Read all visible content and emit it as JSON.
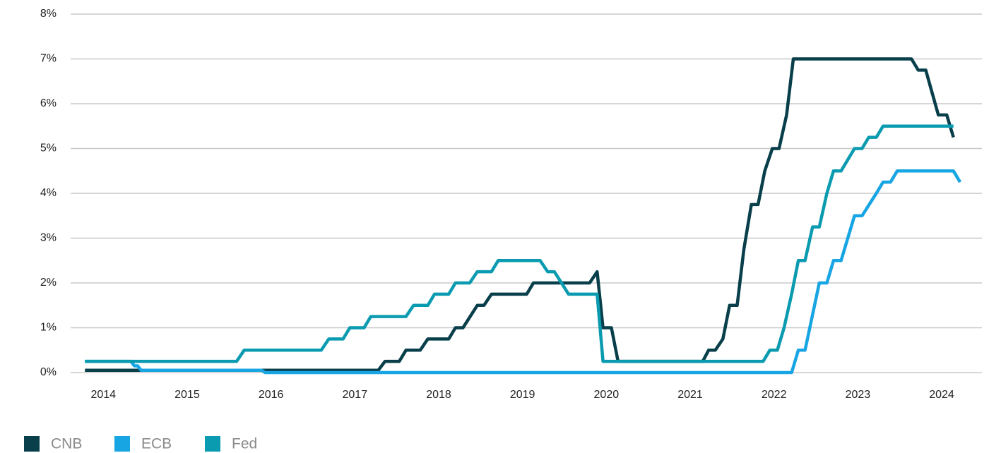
{
  "chart_data": {
    "type": "line",
    "xlim": [
      2013.61,
      2024.48
    ],
    "xticks": [
      2014,
      2015,
      2016,
      2017,
      2018,
      2019,
      2020,
      2021,
      2022,
      2023,
      2024
    ],
    "ylim": [
      0,
      8
    ],
    "yticks": [
      {
        "value": 0,
        "label": "0%"
      },
      {
        "value": 1,
        "label": "1%"
      },
      {
        "value": 2,
        "label": "2%"
      },
      {
        "value": 3,
        "label": "3%"
      },
      {
        "value": 4,
        "label": "4%"
      },
      {
        "value": 5,
        "label": "5%"
      },
      {
        "value": 6,
        "label": "6%"
      },
      {
        "value": 7,
        "label": "7%"
      },
      {
        "value": 8,
        "label": "8%"
      }
    ],
    "grid": true,
    "legend": "bottom-left",
    "series": [
      {
        "name": "CNB",
        "color": "#083f4a",
        "x": [
          2013.78,
          2017.28,
          2017.36,
          2017.53,
          2017.61,
          2017.78,
          2017.87,
          2018.12,
          2018.2,
          2018.29,
          2018.46,
          2018.54,
          2018.63,
          2019.05,
          2019.13,
          2019.8,
          2019.89,
          2019.96,
          2020.06,
          2020.14,
          2021.15,
          2021.22,
          2021.3,
          2021.39,
          2021.47,
          2021.56,
          2021.64,
          2021.73,
          2021.81,
          2021.89,
          2021.98,
          2022.06,
          2022.15,
          2022.23,
          2023.64,
          2023.72,
          2023.81,
          2023.96,
          2024.06,
          2024.14
        ],
        "values": [
          0.05,
          0.05,
          0.25,
          0.25,
          0.5,
          0.5,
          0.75,
          0.75,
          1.0,
          1.0,
          1.5,
          1.5,
          1.75,
          1.75,
          2.0,
          2.0,
          2.25,
          1.0,
          1.0,
          0.25,
          0.25,
          0.5,
          0.5,
          0.75,
          1.5,
          1.5,
          2.75,
          3.75,
          3.75,
          4.5,
          5.0,
          5.0,
          5.75,
          7.0,
          7.0,
          6.75,
          6.75,
          5.75,
          5.75,
          5.25
        ]
      },
      {
        "name": "ECB",
        "color": "#18a5e3",
        "x": [
          2013.78,
          2014.33,
          2014.37,
          2014.41,
          2014.45,
          2015.89,
          2015.93,
          2022.21,
          2022.29,
          2022.37,
          2022.54,
          2022.63,
          2022.71,
          2022.8,
          2022.96,
          2023.05,
          2023.22,
          2023.3,
          2023.39,
          2023.47,
          2024.14,
          2024.22
        ],
        "values": [
          0.25,
          0.25,
          0.15,
          0.15,
          0.05,
          0.05,
          0,
          0,
          0.5,
          0.5,
          2.0,
          2.0,
          2.5,
          2.5,
          3.5,
          3.5,
          4.0,
          4.25,
          4.25,
          4.5,
          4.5,
          4.25
        ]
      },
      {
        "name": "Fed",
        "color": "#0b9bb0",
        "x": [
          2013.78,
          2015.59,
          2015.68,
          2016.6,
          2016.69,
          2016.86,
          2016.94,
          2017.11,
          2017.19,
          2017.61,
          2017.7,
          2017.87,
          2017.95,
          2018.12,
          2018.2,
          2018.37,
          2018.46,
          2018.63,
          2018.71,
          2019.21,
          2019.3,
          2019.38,
          2019.55,
          2019.89,
          2019.96,
          2021.87,
          2021.95,
          2022.04,
          2022.12,
          2022.21,
          2022.29,
          2022.37,
          2022.46,
          2022.54,
          2022.63,
          2022.71,
          2022.8,
          2022.88,
          2022.96,
          2023.05,
          2023.13,
          2023.22,
          2023.3,
          2024.14
        ],
        "values": [
          0.25,
          0.25,
          0.5,
          0.5,
          0.75,
          0.75,
          1.0,
          1.0,
          1.25,
          1.25,
          1.5,
          1.5,
          1.75,
          1.75,
          2.0,
          2.0,
          2.25,
          2.25,
          2.5,
          2.5,
          2.25,
          2.25,
          1.75,
          1.75,
          0.25,
          0.25,
          0.5,
          0.5,
          1.0,
          1.75,
          2.5,
          2.5,
          3.25,
          3.25,
          4.0,
          4.5,
          4.5,
          4.75,
          5.0,
          5.0,
          5.25,
          5.25,
          5.5,
          5.5
        ]
      }
    ]
  }
}
